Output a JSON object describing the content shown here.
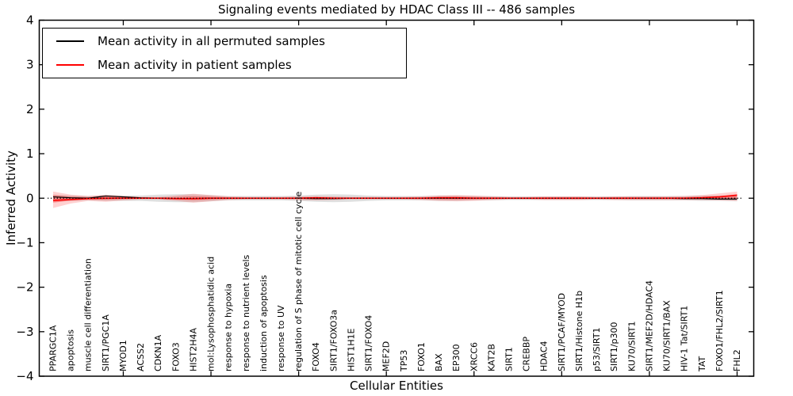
{
  "figure": {
    "background": "#ffffff",
    "accent_red": "#ff0000",
    "accent_black": "#000000"
  },
  "legend": {
    "position": "upper left",
    "entries": [
      {
        "label": "Mean activity in all permuted samples",
        "color": "#000000"
      },
      {
        "label": "Mean activity in patient samples",
        "color": "#ff0000"
      }
    ]
  },
  "chart_data": {
    "type": "line",
    "title": "Signaling events mediated by HDAC Class III -- 486 samples",
    "xlabel": "Cellular Entities",
    "ylabel": "Inferred Activity",
    "ylim": [
      -4,
      4
    ],
    "yticks": [
      4,
      3,
      2,
      1,
      0,
      -1,
      -2,
      -3,
      -4
    ],
    "grid": false,
    "zero_line": true,
    "legend_position": "upper left",
    "categories": [
      "PPARGC1A",
      "apoptosis",
      "muscle cell differentiation",
      "SIRT1/PGC1A",
      "MYOD1",
      "ACSS2",
      "CDKN1A",
      "FOXO3",
      "HIST2H4A",
      "mol:Lysophosphatidic acid",
      "response to hypoxia",
      "response to nutrient levels",
      "induction of apoptosis",
      "response to UV",
      "regulation of S phase of mitotic cell cycle",
      "FOXO4",
      "SIRT1/FOXO3a",
      "HIST1H1E",
      "SIRT1/FOXO4",
      "MEF2D",
      "TP53",
      "FOXO1",
      "BAX",
      "EP300",
      "XRCC6",
      "KAT2B",
      "SIRT1",
      "CREBBP",
      "HDAC4",
      "SIRT1/PCAF/MYOD",
      "SIRT1/Histone H1b",
      "p53/SIRT1",
      "SIRT1/p300",
      "KU70/SIRT1",
      "SIRT1/MEF2D/HDAC4",
      "KU70/SIRT1/BAX",
      "HIV-1 Tat/SIRT1",
      "TAT",
      "FOXO1/FHL2/SIRT1",
      "FHL2"
    ],
    "series": [
      {
        "name": "Mean activity in all permuted samples",
        "color": "#000000",
        "style": "solid",
        "values": [
          0.03,
          0.01,
          0,
          0.05,
          0.03,
          0.01,
          0,
          -0.01,
          -0.01,
          0,
          0,
          0,
          0,
          0,
          0,
          -0.01,
          -0.01,
          0,
          0,
          0,
          0,
          0,
          0,
          0,
          0,
          0,
          0,
          0,
          0,
          0,
          0,
          0,
          0,
          0,
          0,
          0,
          -0.01,
          -0.01,
          -0.02,
          -0.02
        ]
      },
      {
        "name": "Mean activity in patient samples",
        "color": "#ff0000",
        "style": "solid",
        "values": [
          -0.05,
          -0.03,
          -0.01,
          0,
          0,
          0,
          0,
          -0.01,
          -0.01,
          0,
          0,
          0,
          0,
          0,
          0,
          0.01,
          0,
          0,
          0,
          0,
          0,
          0,
          0.01,
          0.01,
          0,
          0,
          0,
          0,
          0,
          0,
          0,
          0,
          0,
          0,
          0,
          0,
          0,
          0.01,
          0.03,
          0.07
        ]
      }
    ],
    "bands": [
      {
        "name": "permuted-samples-range",
        "color": "#b0b0b0",
        "opacity": 0.4,
        "upper": [
          0.08,
          0.06,
          0.05,
          0.06,
          0.06,
          0.06,
          0.08,
          0.09,
          0.09,
          0.07,
          0.05,
          0.05,
          0.05,
          0.05,
          0.06,
          0.08,
          0.09,
          0.08,
          0.06,
          0.05,
          0.05,
          0.05,
          0.06,
          0.06,
          0.05,
          0.05,
          0.04,
          0.04,
          0.04,
          0.04,
          0.04,
          0.04,
          0.04,
          0.05,
          0.05,
          0.05,
          0.05,
          0.06,
          0.06,
          0.07
        ],
        "lower": [
          -0.08,
          -0.06,
          -0.05,
          -0.06,
          -0.06,
          -0.06,
          -0.08,
          -0.09,
          -0.09,
          -0.07,
          -0.05,
          -0.05,
          -0.05,
          -0.05,
          -0.06,
          -0.08,
          -0.09,
          -0.08,
          -0.06,
          -0.05,
          -0.05,
          -0.05,
          -0.06,
          -0.06,
          -0.05,
          -0.05,
          -0.04,
          -0.04,
          -0.04,
          -0.04,
          -0.04,
          -0.04,
          -0.04,
          -0.05,
          -0.05,
          -0.05,
          -0.05,
          -0.06,
          -0.06,
          -0.07
        ]
      },
      {
        "name": "patient-samples-range-outer",
        "color": "#ff0000",
        "opacity": 0.18,
        "upper": [
          0.15,
          0.08,
          0.05,
          0.08,
          0.05,
          0.03,
          0.03,
          0.06,
          0.1,
          0.07,
          0.04,
          0.03,
          0.03,
          0.03,
          0.04,
          0.05,
          0.04,
          0.03,
          0.03,
          0.03,
          0.03,
          0.04,
          0.06,
          0.07,
          0.06,
          0.04,
          0.03,
          0.03,
          0.04,
          0.04,
          0.04,
          0.03,
          0.04,
          0.04,
          0.04,
          0.04,
          0.05,
          0.07,
          0.11,
          0.15
        ],
        "lower": [
          -0.22,
          -0.12,
          -0.06,
          -0.08,
          -0.05,
          -0.03,
          -0.03,
          -0.06,
          -0.1,
          -0.07,
          -0.04,
          -0.03,
          -0.03,
          -0.03,
          -0.04,
          -0.05,
          -0.04,
          -0.03,
          -0.03,
          -0.03,
          -0.03,
          -0.04,
          -0.06,
          -0.07,
          -0.06,
          -0.04,
          -0.03,
          -0.03,
          -0.04,
          -0.04,
          -0.04,
          -0.03,
          -0.04,
          -0.04,
          -0.04,
          -0.04,
          -0.04,
          -0.04,
          -0.05,
          -0.06
        ]
      },
      {
        "name": "patient-samples-range-inner",
        "color": "#ff0000",
        "opacity": 0.3,
        "upper": [
          0.068,
          0.036,
          0.023,
          0.036,
          0.023,
          0.014,
          0.014,
          0.027,
          0.045,
          0.032,
          0.018,
          0.014,
          0.014,
          0.014,
          0.018,
          0.023,
          0.018,
          0.014,
          0.014,
          0.014,
          0.014,
          0.018,
          0.027,
          0.032,
          0.027,
          0.018,
          0.014,
          0.014,
          0.018,
          0.018,
          0.018,
          0.014,
          0.018,
          0.018,
          0.018,
          0.018,
          0.023,
          0.032,
          0.05,
          0.068
        ],
        "lower": [
          -0.099,
          -0.054,
          -0.027,
          -0.036,
          -0.023,
          -0.014,
          -0.014,
          -0.027,
          -0.045,
          -0.032,
          -0.018,
          -0.014,
          -0.014,
          -0.014,
          -0.018,
          -0.023,
          -0.018,
          -0.014,
          -0.014,
          -0.014,
          -0.014,
          -0.018,
          -0.027,
          -0.032,
          -0.027,
          -0.018,
          -0.014,
          -0.014,
          -0.018,
          -0.018,
          -0.018,
          -0.014,
          -0.018,
          -0.018,
          -0.018,
          -0.018,
          -0.018,
          -0.018,
          -0.023,
          -0.027
        ]
      }
    ]
  }
}
